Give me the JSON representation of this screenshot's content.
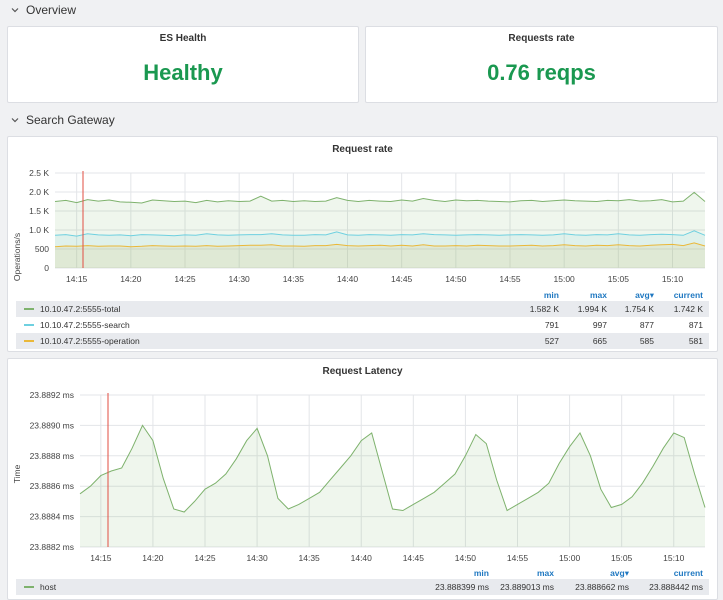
{
  "overview": {
    "title": "Overview"
  },
  "stats": [
    {
      "title": "ES Health",
      "value": "Healthy",
      "color": "#1a9850"
    },
    {
      "title": "Requests rate",
      "value": "0.76 reqps",
      "color": "#1a9850"
    }
  ],
  "gateway": {
    "title": "Search Gateway"
  },
  "rate_panel": {
    "title": "Request rate",
    "ylabel": "Operations/s",
    "yticks": [
      "2.5 K",
      "2.0 K",
      "1.5 K",
      "1.0 K",
      "500",
      "0"
    ],
    "xticks": [
      "14:15",
      "14:20",
      "14:25",
      "14:30",
      "14:35",
      "14:40",
      "14:45",
      "14:50",
      "14:55",
      "15:00",
      "15:05",
      "15:10"
    ],
    "legend_headers": [
      "min",
      "max",
      "avg▾",
      "current"
    ],
    "legend": [
      {
        "name": "10.10.47.2:5555-total",
        "color": "#7eb26d",
        "min": "1.582 K",
        "max": "1.994 K",
        "avg": "1.754 K",
        "current": "1.742 K"
      },
      {
        "name": "10.10.47.2:5555-search",
        "color": "#6ed0e0",
        "min": "791",
        "max": "997",
        "avg": "877",
        "current": "871"
      },
      {
        "name": "10.10.47.2:5555-operation",
        "color": "#eab839",
        "min": "527",
        "max": "665",
        "avg": "585",
        "current": "581"
      }
    ]
  },
  "latency_panel": {
    "title": "Request Latency",
    "ylabel": "Time",
    "yticks": [
      "23.8892 ms",
      "23.8890 ms",
      "23.8888 ms",
      "23.8886 ms",
      "23.8884 ms",
      "23.8882 ms"
    ],
    "xticks": [
      "14:15",
      "14:20",
      "14:25",
      "14:30",
      "14:35",
      "14:40",
      "14:45",
      "14:50",
      "14:55",
      "15:00",
      "15:05",
      "15:10"
    ],
    "legend_headers": [
      "min",
      "max",
      "avg▾",
      "current"
    ],
    "legend": [
      {
        "name": "host",
        "color": "#7eb26d",
        "min": "23.888399 ms",
        "max": "23.889013 ms",
        "avg": "23.888662 ms",
        "current": "23.888442 ms"
      }
    ]
  },
  "chart_data": [
    {
      "type": "line",
      "title": "Request rate",
      "ylabel": "Operations/s",
      "ylim": [
        0,
        2500
      ],
      "x": [
        "14:13",
        "14:14",
        "14:15",
        "14:16",
        "14:17",
        "14:18",
        "14:19",
        "14:20",
        "14:21",
        "14:22",
        "14:23",
        "14:24",
        "14:25",
        "14:26",
        "14:27",
        "14:28",
        "14:29",
        "14:30",
        "14:31",
        "14:32",
        "14:33",
        "14:34",
        "14:35",
        "14:36",
        "14:37",
        "14:38",
        "14:39",
        "14:40",
        "14:41",
        "14:42",
        "14:43",
        "14:44",
        "14:45",
        "14:46",
        "14:47",
        "14:48",
        "14:49",
        "14:50",
        "14:51",
        "14:52",
        "14:53",
        "14:54",
        "14:55",
        "14:56",
        "14:57",
        "14:58",
        "14:59",
        "15:00",
        "15:01",
        "15:02",
        "15:03",
        "15:04",
        "15:05",
        "15:06",
        "15:07",
        "15:08",
        "15:09",
        "15:10",
        "15:11",
        "15:12",
        "15:13"
      ],
      "series": [
        {
          "name": "10.10.47.2:5555-total",
          "values": [
            1750,
            1780,
            1720,
            1800,
            1760,
            1790,
            1740,
            1730,
            1710,
            1790,
            1770,
            1750,
            1760,
            1720,
            1780,
            1740,
            1770,
            1750,
            1760,
            1890,
            1760,
            1780,
            1750,
            1770,
            1750,
            1760,
            1850,
            1780,
            1750,
            1780,
            1760,
            1750,
            1790,
            1760,
            1830,
            1780,
            1750,
            1790,
            1770,
            1780,
            1760,
            1750,
            1740,
            1770,
            1780,
            1750,
            1770,
            1790,
            1770,
            1760,
            1750,
            1780,
            1770,
            1800,
            1760,
            1770,
            1800,
            1740,
            1760,
            1990,
            1750
          ]
        },
        {
          "name": "10.10.47.2:5555-search",
          "values": [
            860,
            880,
            840,
            900,
            870,
            860,
            870,
            850,
            880,
            870,
            860,
            850,
            870,
            860,
            900,
            870,
            860,
            870,
            880,
            880,
            900,
            870,
            860,
            860,
            880,
            870,
            950,
            870,
            860,
            880,
            870,
            860,
            880,
            870,
            900,
            880,
            870,
            860,
            870,
            880,
            870,
            860,
            870,
            880,
            870,
            860,
            870,
            900,
            870,
            860,
            880,
            870,
            900,
            870,
            860,
            880,
            890,
            880,
            860,
            980,
            860
          ]
        },
        {
          "name": "10.10.47.2:5555-operation",
          "values": [
            560,
            580,
            570,
            590,
            570,
            580,
            580,
            560,
            570,
            590,
            580,
            570,
            580,
            570,
            590,
            570,
            580,
            590,
            600,
            600,
            610,
            580,
            580,
            570,
            590,
            590,
            620,
            590,
            580,
            590,
            600,
            580,
            600,
            580,
            610,
            580,
            580,
            590,
            580,
            600,
            590,
            580,
            580,
            590,
            600,
            580,
            590,
            610,
            590,
            580,
            600,
            590,
            610,
            590,
            580,
            600,
            610,
            620,
            590,
            660,
            580
          ]
        }
      ]
    },
    {
      "type": "line",
      "title": "Request Latency",
      "ylabel": "Time",
      "ylim": [
        23.8882,
        23.8892
      ],
      "x": [
        "14:13",
        "14:14",
        "14:15",
        "14:16",
        "14:17",
        "14:18",
        "14:19",
        "14:20",
        "14:21",
        "14:22",
        "14:23",
        "14:24",
        "14:25",
        "14:26",
        "14:27",
        "14:28",
        "14:29",
        "14:30",
        "14:31",
        "14:32",
        "14:33",
        "14:34",
        "14:35",
        "14:36",
        "14:37",
        "14:38",
        "14:39",
        "14:40",
        "14:41",
        "14:42",
        "14:43",
        "14:44",
        "14:45",
        "14:46",
        "14:47",
        "14:48",
        "14:49",
        "14:50",
        "14:51",
        "14:52",
        "14:53",
        "14:54",
        "14:55",
        "14:56",
        "14:57",
        "14:58",
        "14:59",
        "15:00",
        "15:01",
        "15:02",
        "15:03",
        "15:04",
        "15:05",
        "15:06",
        "15:07",
        "15:08",
        "15:09",
        "15:10",
        "15:11",
        "15:12",
        "15:13"
      ],
      "series": [
        {
          "name": "host",
          "values": [
            23.88855,
            23.8886,
            23.88867,
            23.8887,
            23.88872,
            23.88885,
            23.889,
            23.8889,
            23.88865,
            23.88845,
            23.88843,
            23.8885,
            23.88858,
            23.88862,
            23.88868,
            23.88878,
            23.8889,
            23.88898,
            23.8888,
            23.88852,
            23.88845,
            23.88848,
            23.88852,
            23.88856,
            23.88864,
            23.88872,
            23.8888,
            23.8889,
            23.88895,
            23.8887,
            23.88845,
            23.88844,
            23.88848,
            23.88852,
            23.88856,
            23.88862,
            23.88868,
            23.8888,
            23.88894,
            23.88888,
            23.88864,
            23.88844,
            23.88848,
            23.88852,
            23.88856,
            23.88862,
            23.88875,
            23.88886,
            23.88895,
            23.8888,
            23.88858,
            23.88846,
            23.88848,
            23.88853,
            23.88862,
            23.88873,
            23.88885,
            23.88895,
            23.88892,
            23.88868,
            23.88846
          ]
        }
      ]
    }
  ]
}
